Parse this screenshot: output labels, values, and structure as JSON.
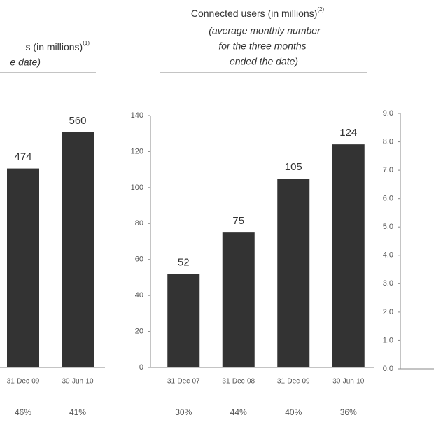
{
  "chart_data": [
    {
      "type": "bar",
      "title": "s (in millions)",
      "title_note": "(1)",
      "subtitle": [
        "e date)"
      ],
      "categories": [
        "31-Dec-09",
        "30-Jun-10"
      ],
      "values": [
        474,
        560
      ],
      "annotations": [
        "46%",
        "41%"
      ],
      "color": "#333333",
      "ylim": [
        0,
        600
      ]
    },
    {
      "type": "bar",
      "title": "Connected users (in millions)",
      "title_note": "(2)",
      "subtitle": [
        "(average monthly number",
        "for the three months",
        "ended the date)"
      ],
      "categories": [
        "31-Dec-07",
        "31-Dec-08",
        "31-Dec-09",
        "30-Jun-10"
      ],
      "values": [
        52,
        75,
        105,
        124
      ],
      "annotations": [
        "30%",
        "44%",
        "40%",
        "36%"
      ],
      "color": "#333333",
      "ylim": [
        0,
        140
      ],
      "yticks": [
        0,
        20,
        40,
        60,
        80,
        100,
        120,
        140
      ]
    },
    {
      "type": "bar",
      "ylim": [
        0,
        9
      ],
      "yticks": [
        {
          "value": 0,
          "label": "0.0"
        },
        {
          "value": 1,
          "label": "1.0"
        },
        {
          "value": 2,
          "label": "2.0"
        },
        {
          "value": 3,
          "label": "3.0"
        },
        {
          "value": 4,
          "label": "4.0"
        },
        {
          "value": 5,
          "label": "5.0"
        },
        {
          "value": 6,
          "label": "6.0"
        },
        {
          "value": 7,
          "label": "7.0"
        },
        {
          "value": 8,
          "label": "8.0"
        },
        {
          "value": 9,
          "label": "9.0"
        }
      ]
    }
  ]
}
